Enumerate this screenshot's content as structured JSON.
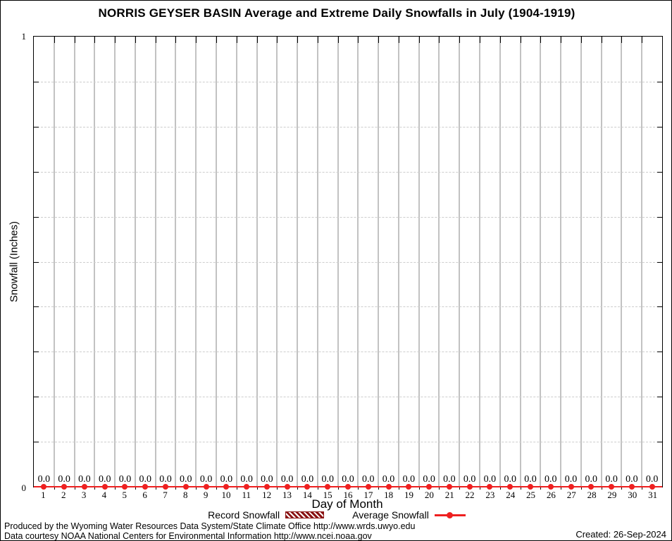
{
  "chart": {
    "title": "NORRIS GEYSER BASIN Average and Extreme Daily Snowfalls in July (1904-1919)",
    "xlabel": "Day of Month",
    "ylabel": "Snowfall (Inches)",
    "y_top_tick": "1",
    "y_bottom_tick": "0"
  },
  "legend": {
    "record_label": "Record Snowfall",
    "average_label": "Average Snowfall"
  },
  "footer": {
    "line1": "Produced by the Wyoming Water Resources Data System/State Climate Office http://www.wrds.uwyo.edu",
    "line2": "Data courtesy NOAA National Centers for Environmental Information http://www.ncei.noaa.gov",
    "created": "Created: 26-Sep-2024"
  },
  "colors": {
    "average_red": "#ee2020",
    "record_dark_red": "#8b1414",
    "v_grid_gray": "#c2c2c2",
    "h_grid_gray": "#cdcdcd",
    "axis_black": "#000000",
    "background": "#ffffff"
  },
  "chart_data": {
    "type": "line",
    "title": "NORRIS GEYSER BASIN Average and Extreme Daily Snowfalls in July (1904-1919)",
    "xlabel": "Day of Month",
    "ylabel": "Snowfall (Inches)",
    "x": [
      1,
      2,
      3,
      4,
      5,
      6,
      7,
      8,
      9,
      10,
      11,
      12,
      13,
      14,
      15,
      16,
      17,
      18,
      19,
      20,
      21,
      22,
      23,
      24,
      25,
      26,
      27,
      28,
      29,
      30,
      31
    ],
    "series": [
      {
        "name": "Record Snowfall",
        "style": "bar-hatched-dark-red",
        "values": [
          0.0,
          0.0,
          0.0,
          0.0,
          0.0,
          0.0,
          0.0,
          0.0,
          0.0,
          0.0,
          0.0,
          0.0,
          0.0,
          0.0,
          0.0,
          0.0,
          0.0,
          0.0,
          0.0,
          0.0,
          0.0,
          0.0,
          0.0,
          0.0,
          0.0,
          0.0,
          0.0,
          0.0,
          0.0,
          0.0,
          0.0
        ]
      },
      {
        "name": "Average Snowfall",
        "style": "line-points-red",
        "values": [
          0.0,
          0.0,
          0.0,
          0.0,
          0.0,
          0.0,
          0.0,
          0.0,
          0.0,
          0.0,
          0.0,
          0.0,
          0.0,
          0.0,
          0.0,
          0.0,
          0.0,
          0.0,
          0.0,
          0.0,
          0.0,
          0.0,
          0.0,
          0.0,
          0.0,
          0.0,
          0.0,
          0.0,
          0.0,
          0.0,
          0.0
        ]
      }
    ],
    "point_labels": [
      "0.0",
      "0.0",
      "0.0",
      "0.0",
      "0.0",
      "0.0",
      "0.0",
      "0.0",
      "0.0",
      "0.0",
      "0.0",
      "0.0",
      "0.0",
      "0.0",
      "0.0",
      "0.0",
      "0.0",
      "0.0",
      "0.0",
      "0.0",
      "0.0",
      "0.0",
      "0.0",
      "0.0",
      "0.0",
      "0.0",
      "0.0",
      "0.0",
      "0.0",
      "0.0",
      "0.0"
    ],
    "ylim": [
      0,
      1
    ],
    "xlim": [
      0.5,
      31.5
    ],
    "y_tick_step": 0.1,
    "y_labeled_ticks": [
      0,
      1
    ],
    "grid": true,
    "legend_position": "bottom"
  }
}
